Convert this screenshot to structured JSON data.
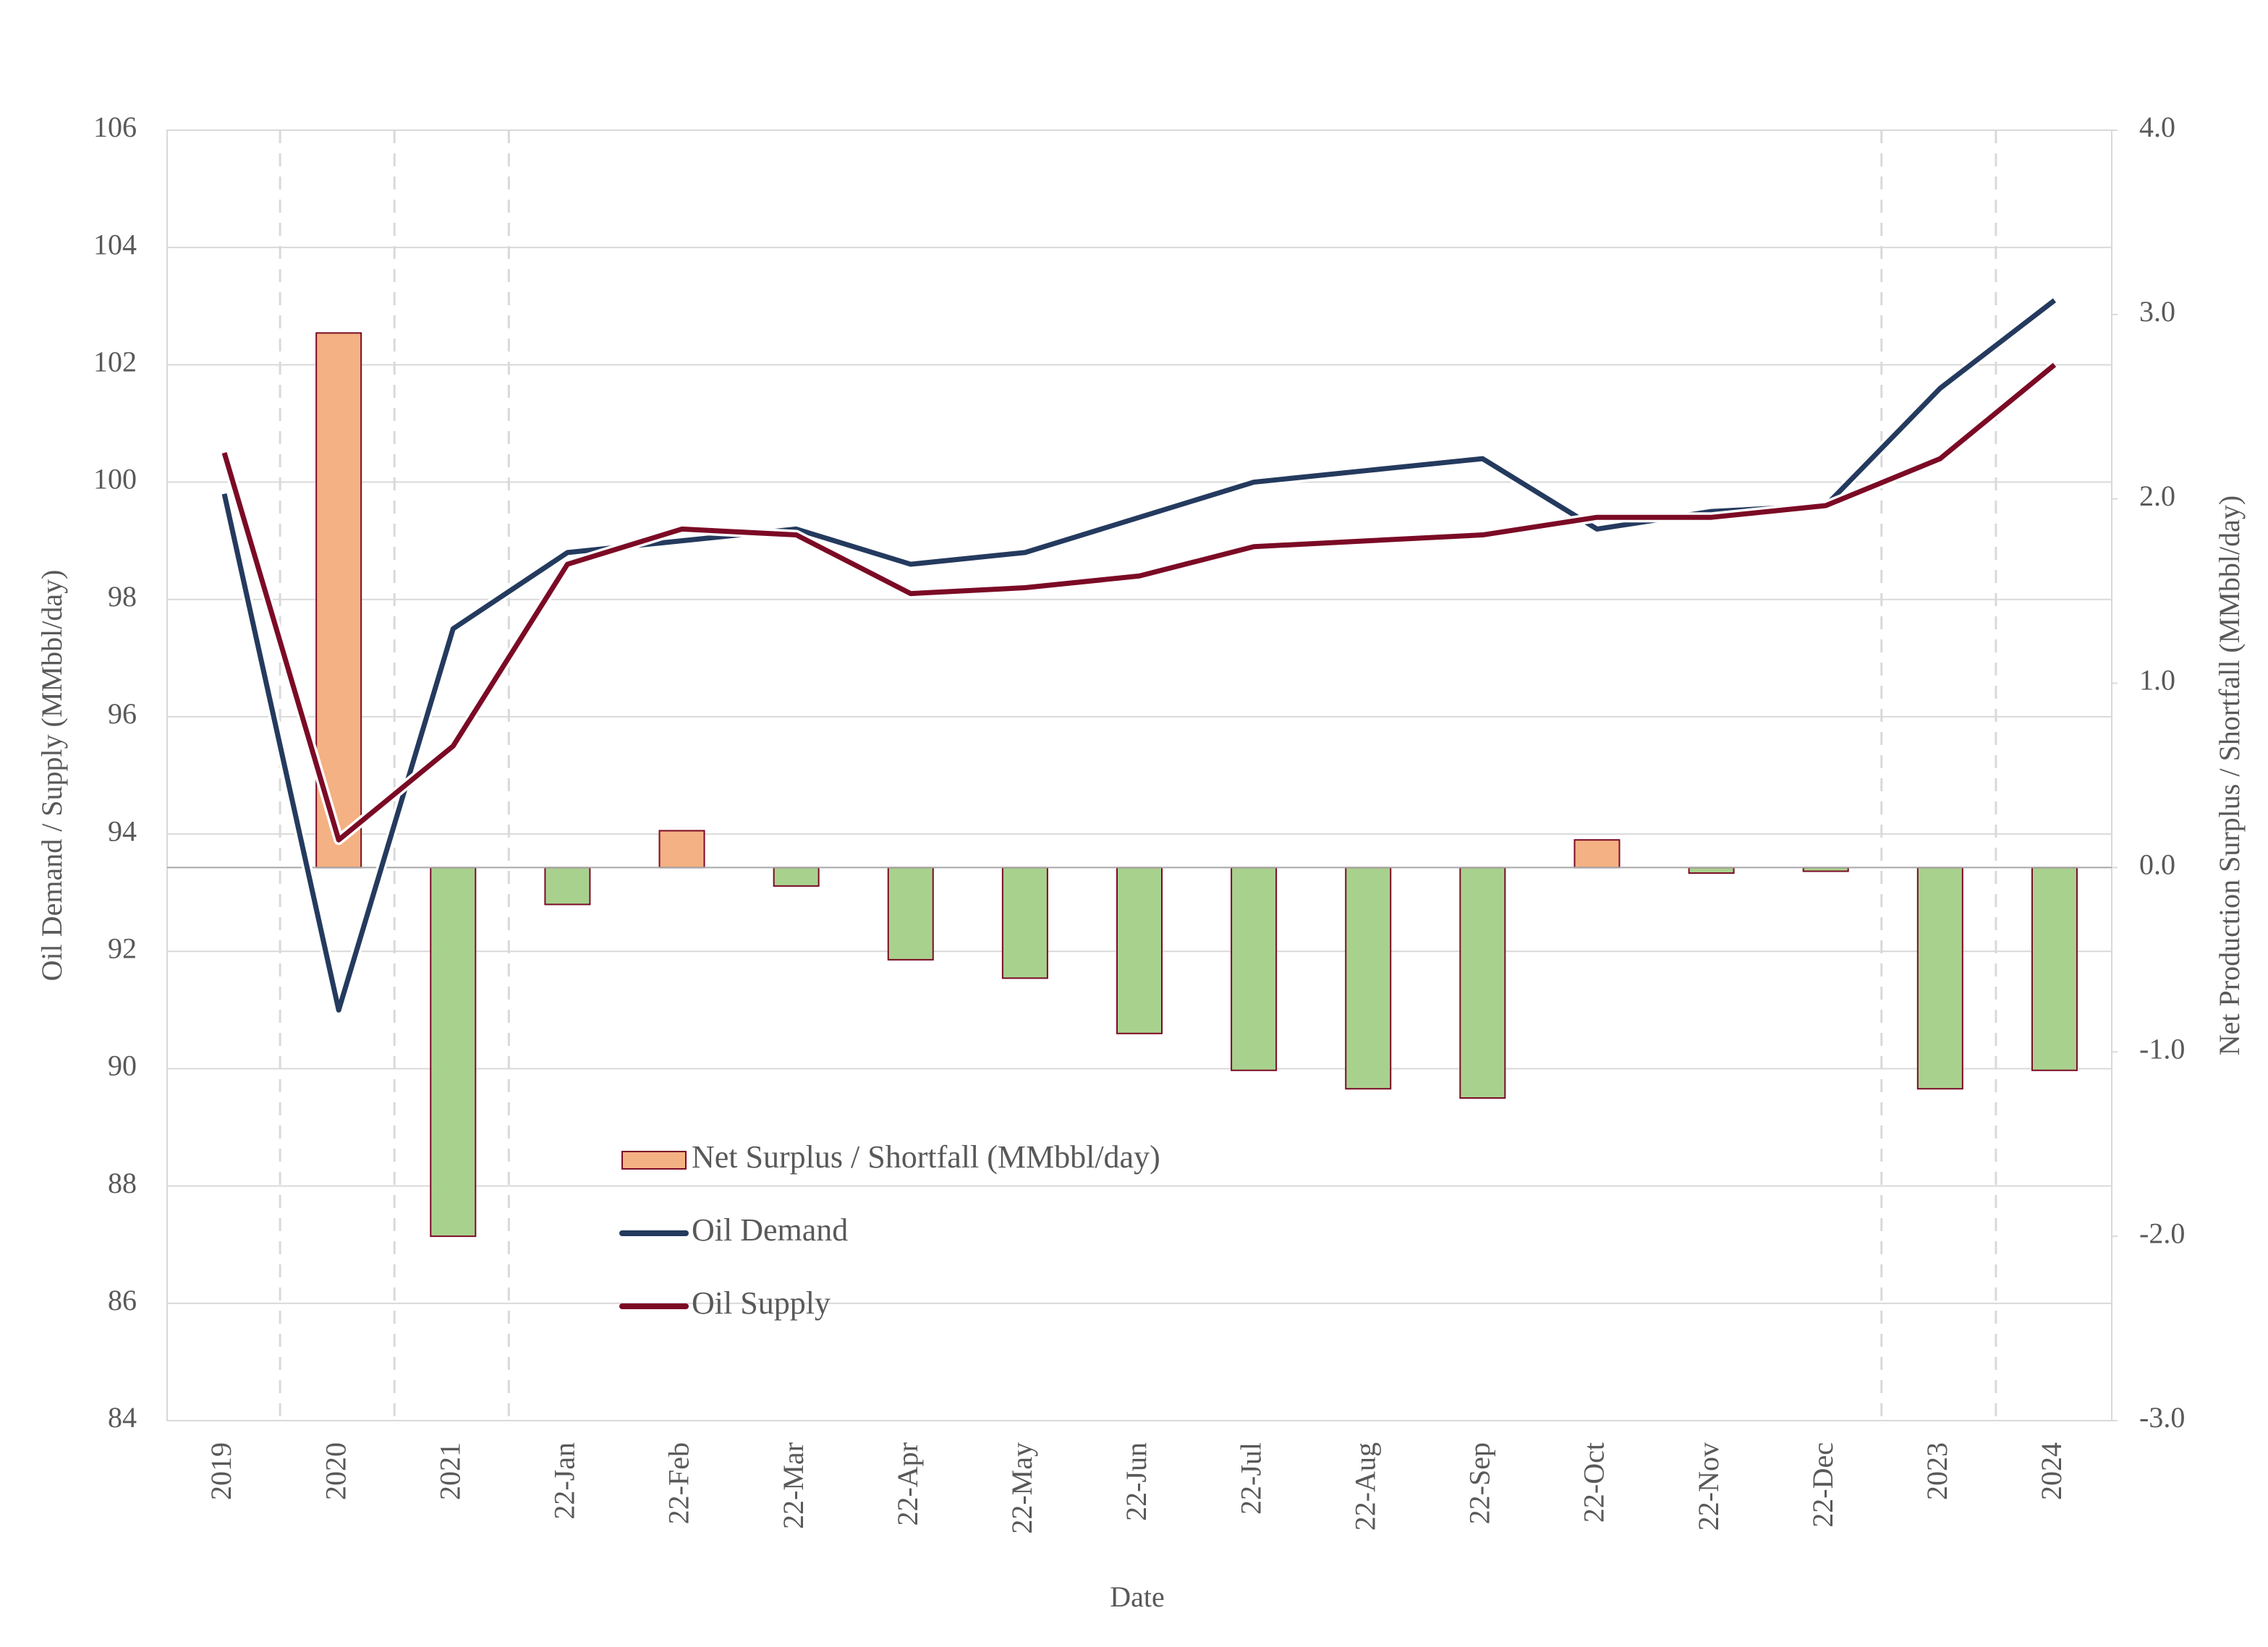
{
  "chart_data": {
    "type": "combo",
    "x_label": "Date",
    "y_label": "Oil Demand / Supply (MMbbl/day)",
    "y2_label": "Net Production Surplus / Shortfall (MMbbl/day)",
    "categories": [
      "2019",
      "2020",
      "2021",
      "22-Jan",
      "22-Feb",
      "22-Mar",
      "22-Apr",
      "22-May",
      "22-Jun",
      "22-Jul",
      "22-Aug",
      "22-Sep",
      "22-Oct",
      "22-Nov",
      "22-Dec",
      "2023",
      "2024"
    ],
    "series": [
      {
        "name": "Net Surplus / Shortfall (MMbbl/day)",
        "type": "bar",
        "axis": "y2",
        "color": "#f4b183",
        "negative_color": "#a9d18e",
        "edgecolor": "#7b0a25",
        "values": [
          null,
          2.9,
          -2.0,
          -0.2,
          0.2,
          -0.1,
          -0.5,
          -0.6,
          -0.9,
          -1.1,
          -1.2,
          -1.25,
          0.15,
          -0.03,
          -0.02,
          -1.2,
          -1.1
        ]
      },
      {
        "name": "Oil Demand",
        "type": "line",
        "color": "#243a5e",
        "values": [
          99.8,
          91.0,
          97.5,
          98.8,
          99.0,
          99.2,
          98.6,
          98.8,
          99.4,
          100.0,
          100.2,
          100.4,
          99.2,
          99.5,
          99.6,
          101.6,
          103.1
        ]
      },
      {
        "name": "Oil Supply",
        "type": "line",
        "color": "#7b0a25",
        "values": [
          100.5,
          93.9,
          95.5,
          98.6,
          99.2,
          99.1,
          98.1,
          98.2,
          98.4,
          98.9,
          99.0,
          99.1,
          99.4,
          99.4,
          99.6,
          100.4,
          102.0
        ]
      }
    ],
    "ylim": [
      84,
      106
    ],
    "yticks": [
      84,
      86,
      88,
      90,
      92,
      94,
      96,
      98,
      100,
      102,
      104,
      106
    ],
    "y2lim": [
      -3,
      4
    ],
    "y2ticks": [
      {
        "value": -3,
        "label": "-3.0"
      },
      {
        "value": -2,
        "label": "-2.0"
      },
      {
        "value": -1,
        "label": "-1.0"
      },
      {
        "value": 0,
        "label": "0.0"
      },
      {
        "value": 1,
        "label": "1.0"
      },
      {
        "value": 2,
        "label": "2.0"
      },
      {
        "value": 3,
        "label": "3.0"
      },
      {
        "value": 4,
        "label": "4.0"
      }
    ],
    "grid": true
  }
}
